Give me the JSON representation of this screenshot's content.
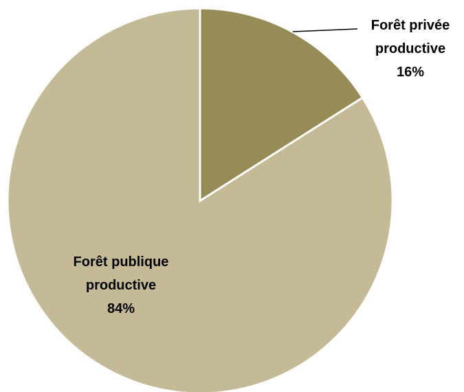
{
  "chart_data": {
    "type": "pie",
    "categories": [
      "Forêt privée productive",
      "Forêt publique productive"
    ],
    "values": [
      16,
      84
    ],
    "value_labels": [
      "16%",
      "84%"
    ],
    "colors": [
      "#968c55",
      "#c4bb96"
    ]
  }
}
